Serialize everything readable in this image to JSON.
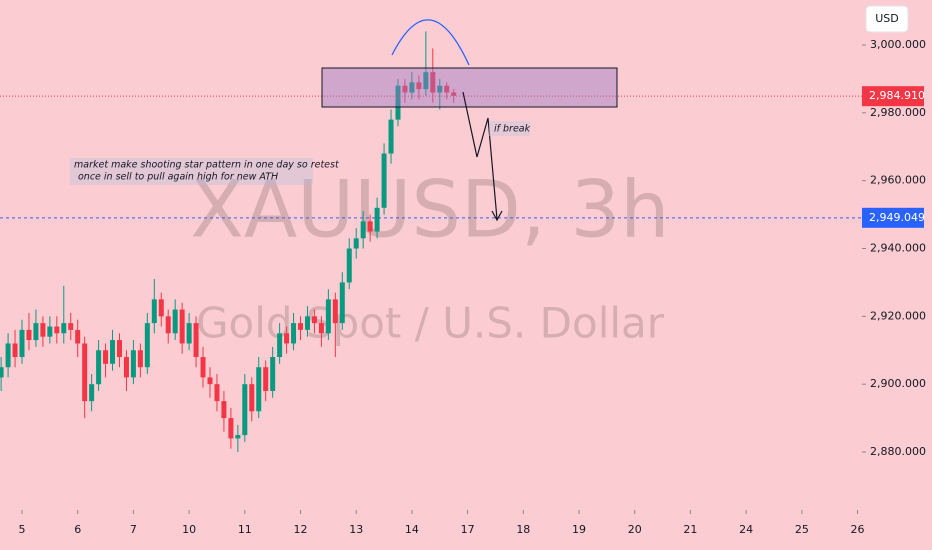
{
  "chart_data": {
    "type": "candlestick",
    "title": "XAUUSD, 3h",
    "subtitle": "Gold Spot / U.S. Dollar",
    "currency": "USD",
    "annotations": [
      "market make shooting star pattern in one day so retest",
      "once in sell to pull again high for new ATH",
      "if break"
    ],
    "up_color": "#089981",
    "down_color": "#f23645",
    "x": [
      -0.375,
      -0.25,
      -0.125,
      0,
      0.125,
      0.25,
      0.375,
      0.5,
      0.625,
      0.75,
      0.875,
      1,
      1.125,
      1.25,
      1.375,
      1.5,
      1.625,
      1.75,
      1.875,
      2,
      2.125,
      2.25,
      2.375,
      2.5,
      2.625,
      2.75,
      2.875,
      3,
      3.125,
      3.25,
      3.375,
      3.5,
      3.625,
      3.75,
      3.875,
      4,
      4.125,
      4.25,
      4.375,
      4.5,
      4.625,
      4.75,
      4.875,
      5,
      5.125,
      5.25,
      5.375,
      5.5,
      5.625,
      5.75,
      5.875,
      6,
      6.125,
      6.25,
      6.375,
      6.5,
      6.625,
      6.75,
      6.875,
      7,
      7.125,
      7.25,
      7.375,
      7.5,
      7.625,
      7.75
    ],
    "open": [
      2902,
      2905,
      2912,
      2908,
      2916,
      2913,
      2918,
      2914,
      2917,
      2915,
      2918,
      2916,
      2912,
      2895,
      2900,
      2910,
      2906,
      2913,
      2908,
      2902,
      2910,
      2905,
      2918,
      2925,
      2920,
      2915,
      2922,
      2912,
      2918,
      2908,
      2902,
      2900,
      2895,
      2890,
      2884,
      2885,
      2900,
      2892,
      2905,
      2898,
      2908,
      2915,
      2912,
      2918,
      2916,
      2920,
      2918,
      2915,
      2925,
      2918,
      2930,
      2940,
      2943,
      2948,
      2945,
      2952,
      2968,
      2978,
      2988,
      2986,
      2989,
      2987,
      2992,
      2986,
      2988,
      2986
    ],
    "high": [
      2908,
      2915,
      2916,
      2919,
      2921,
      2922,
      2920,
      2920,
      2920,
      2929,
      2921,
      2919,
      2914,
      2903,
      2913,
      2912,
      2916,
      2915,
      2910,
      2913,
      2912,
      2921,
      2931,
      2927,
      2922,
      2925,
      2924,
      2921,
      2920,
      2911,
      2905,
      2903,
      2898,
      2893,
      2888,
      2903,
      2902,
      2908,
      2907,
      2911,
      2918,
      2917,
      2921,
      2920,
      2923,
      2922,
      2920,
      2928,
      2927,
      2933,
      2943,
      2946,
      2951,
      2950,
      2955,
      2971,
      2981,
      2990,
      2990,
      2992,
      2991,
      3004,
      2999,
      2990,
      2989,
      2987
    ],
    "low": [
      2898,
      2902,
      2905,
      2906,
      2910,
      2911,
      2911,
      2912,
      2912,
      2912,
      2913,
      2908,
      2890,
      2892,
      2898,
      2902,
      2904,
      2905,
      2898,
      2900,
      2902,
      2903,
      2915,
      2917,
      2912,
      2913,
      2909,
      2910,
      2905,
      2899,
      2896,
      2892,
      2886,
      2881,
      2880,
      2883,
      2889,
      2890,
      2895,
      2896,
      2906,
      2909,
      2910,
      2913,
      2914,
      2915,
      2911,
      2913,
      2908,
      2916,
      2928,
      2937,
      2940,
      2942,
      2943,
      2950,
      2965,
      2976,
      2983,
      2984,
      2984,
      2985,
      2983,
      2981,
      2984,
      2983
    ],
    "close": [
      2905,
      2912,
      2908,
      2916,
      2913,
      2918,
      2914,
      2917,
      2915,
      2918,
      2916,
      2912,
      2895,
      2900,
      2910,
      2906,
      2913,
      2908,
      2902,
      2910,
      2905,
      2918,
      2925,
      2920,
      2915,
      2922,
      2912,
      2918,
      2908,
      2902,
      2900,
      2895,
      2890,
      2884,
      2885,
      2900,
      2892,
      2905,
      2898,
      2908,
      2915,
      2912,
      2918,
      2916,
      2920,
      2918,
      2915,
      2925,
      2918,
      2930,
      2940,
      2943,
      2948,
      2945,
      2952,
      2968,
      2978,
      2988,
      2986,
      2989,
      2987,
      2992,
      2986,
      2988,
      2986,
      2985
    ],
    "xlim": [
      -0.395,
      15.08
    ],
    "xticks": [
      {
        "value": 0,
        "label": "5"
      },
      {
        "value": 1,
        "label": "6"
      },
      {
        "value": 2,
        "label": "7"
      },
      {
        "value": 3,
        "label": "10"
      },
      {
        "value": 4,
        "label": "11"
      },
      {
        "value": 5,
        "label": "12"
      },
      {
        "value": 6,
        "label": "13"
      },
      {
        "value": 7,
        "label": "14"
      },
      {
        "value": 8,
        "label": "17"
      },
      {
        "value": 9,
        "label": "18"
      },
      {
        "value": 10,
        "label": "19"
      },
      {
        "value": 11,
        "label": "20"
      },
      {
        "value": 12,
        "label": "21"
      },
      {
        "value": 13,
        "label": "24"
      },
      {
        "value": 14,
        "label": "25"
      },
      {
        "value": 15,
        "label": "26"
      }
    ],
    "ylim": [
      2862.9,
      3013.27
    ],
    "yticks": [
      {
        "value": 2880,
        "label": "2,880.000"
      },
      {
        "value": 2900,
        "label": "2,900.000"
      },
      {
        "value": 2920,
        "label": "2,920.000"
      },
      {
        "value": 2940,
        "label": "2,940.000"
      },
      {
        "value": 2960,
        "label": "2,960.000"
      },
      {
        "value": 2980,
        "label": "2,980.000"
      },
      {
        "value": 3000,
        "label": "3,000.000"
      }
    ],
    "price_lines": [
      {
        "value": 2984.91,
        "label": "2,984.910",
        "color": "#f23645"
      },
      {
        "value": 2949.049,
        "label": "2,949.049",
        "color": "#2962ff"
      }
    ]
  }
}
